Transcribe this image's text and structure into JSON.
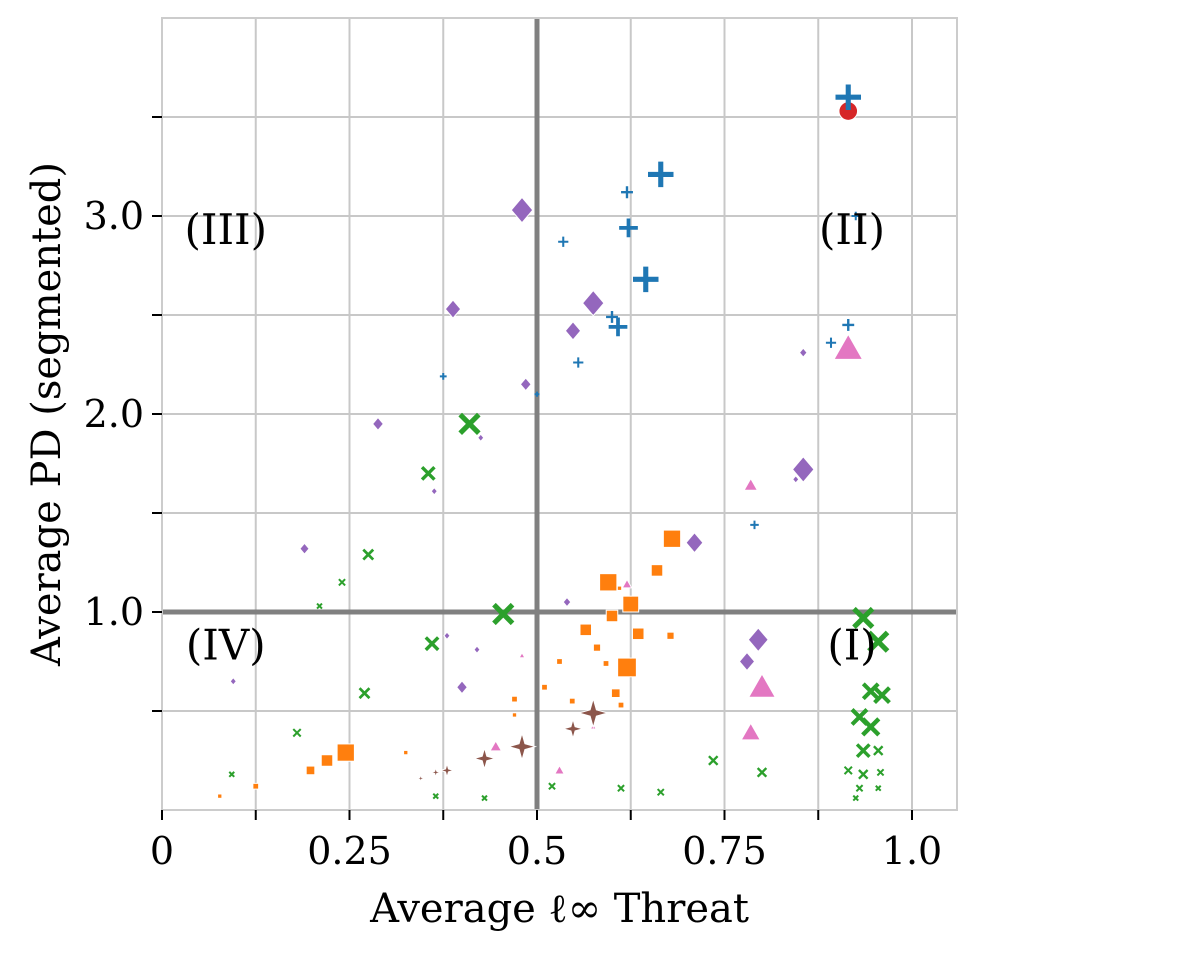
{
  "chart_data": {
    "type": "scatter",
    "title": "",
    "xlabel": "Average ℓ∞ Threat",
    "ylabel": "Average PD (segmented)",
    "xlim": [
      0,
      1.06
    ],
    "ylim": [
      0,
      4.0
    ],
    "grid": true,
    "x_ticks": [
      0,
      0.125,
      0.25,
      0.375,
      0.5,
      0.625,
      0.75,
      0.875,
      1.0
    ],
    "x_tick_labels": [
      "0",
      "",
      "0.25",
      "",
      "0.5",
      "",
      "0.75",
      "",
      "1.0"
    ],
    "y_ticks": [
      0.5,
      1.0,
      1.5,
      2.0,
      2.5,
      3.0,
      3.5
    ],
    "y_tick_labels": [
      "",
      "1.0",
      "",
      "2.0",
      "",
      "3.0",
      ""
    ],
    "reference_lines": {
      "x": 0.5,
      "y": 1.0
    },
    "quadrant_labels": [
      {
        "text": "(I)",
        "x": 0.92,
        "y": 0.83
      },
      {
        "text": "(II)",
        "x": 0.92,
        "y": 2.93
      },
      {
        "text": "(III)",
        "x": 0.085,
        "y": 2.93
      },
      {
        "text": "(IV)",
        "x": 0.085,
        "y": 0.83
      }
    ],
    "series": [
      {
        "color": "#d62728",
        "marker": "circle",
        "points": [
          {
            "x": 0.915,
            "y": 3.53,
            "s": 30
          }
        ]
      },
      {
        "color": "#1f77b4",
        "marker": "plus",
        "points": [
          {
            "x": 0.915,
            "y": 3.6,
            "s": 30
          },
          {
            "x": 0.665,
            "y": 3.21,
            "s": 30
          },
          {
            "x": 0.645,
            "y": 2.68,
            "s": 30
          },
          {
            "x": 0.622,
            "y": 2.94,
            "s": 22
          },
          {
            "x": 0.608,
            "y": 2.44,
            "s": 22
          },
          {
            "x": 0.62,
            "y": 3.12,
            "s": 14
          },
          {
            "x": 0.6,
            "y": 2.49,
            "s": 14
          },
          {
            "x": 0.535,
            "y": 2.87,
            "s": 12
          },
          {
            "x": 0.555,
            "y": 2.26,
            "s": 12
          },
          {
            "x": 0.915,
            "y": 2.45,
            "s": 14
          },
          {
            "x": 0.892,
            "y": 2.36,
            "s": 12
          },
          {
            "x": 0.79,
            "y": 1.44,
            "s": 10
          },
          {
            "x": 0.375,
            "y": 2.19,
            "s": 8
          },
          {
            "x": 0.925,
            "y": 3.0,
            "s": 10
          },
          {
            "x": 0.5,
            "y": 2.1,
            "s": 6
          }
        ]
      },
      {
        "color": "#9467bd",
        "marker": "diamond",
        "points": [
          {
            "x": 0.48,
            "y": 3.03,
            "s": 28
          },
          {
            "x": 0.575,
            "y": 2.56,
            "s": 28
          },
          {
            "x": 0.548,
            "y": 2.42,
            "s": 20
          },
          {
            "x": 0.388,
            "y": 2.53,
            "s": 20
          },
          {
            "x": 0.485,
            "y": 2.15,
            "s": 14
          },
          {
            "x": 0.288,
            "y": 1.95,
            "s": 14
          },
          {
            "x": 0.855,
            "y": 1.72,
            "s": 28
          },
          {
            "x": 0.71,
            "y": 1.35,
            "s": 22
          },
          {
            "x": 0.795,
            "y": 0.86,
            "s": 26
          },
          {
            "x": 0.78,
            "y": 0.75,
            "s": 20
          },
          {
            "x": 0.19,
            "y": 1.32,
            "s": 12
          },
          {
            "x": 0.4,
            "y": 0.62,
            "s": 14
          },
          {
            "x": 0.855,
            "y": 2.31,
            "s": 10
          },
          {
            "x": 0.54,
            "y": 1.05,
            "s": 10
          },
          {
            "x": 0.363,
            "y": 1.61,
            "s": 8
          },
          {
            "x": 0.095,
            "y": 0.65,
            "s": 8
          },
          {
            "x": 0.42,
            "y": 0.81,
            "s": 8
          },
          {
            "x": 0.425,
            "y": 1.88,
            "s": 8
          },
          {
            "x": 0.845,
            "y": 1.67,
            "s": 8
          },
          {
            "x": 0.38,
            "y": 0.88,
            "s": 8
          }
        ]
      },
      {
        "color": "#2ca02c",
        "marker": "x",
        "points": [
          {
            "x": 0.41,
            "y": 1.95,
            "s": 30
          },
          {
            "x": 0.455,
            "y": 0.99,
            "s": 30
          },
          {
            "x": 0.355,
            "y": 1.7,
            "s": 20
          },
          {
            "x": 0.36,
            "y": 0.84,
            "s": 20
          },
          {
            "x": 0.275,
            "y": 1.29,
            "s": 16
          },
          {
            "x": 0.27,
            "y": 0.59,
            "s": 16
          },
          {
            "x": 0.24,
            "y": 1.15,
            "s": 10
          },
          {
            "x": 0.21,
            "y": 1.03,
            "s": 8
          },
          {
            "x": 0.18,
            "y": 0.39,
            "s": 12
          },
          {
            "x": 0.093,
            "y": 0.18,
            "s": 8
          },
          {
            "x": 0.365,
            "y": 0.07,
            "s": 8
          },
          {
            "x": 0.43,
            "y": 0.06,
            "s": 8
          },
          {
            "x": 0.52,
            "y": 0.12,
            "s": 10
          },
          {
            "x": 0.612,
            "y": 0.11,
            "s": 10
          },
          {
            "x": 0.665,
            "y": 0.09,
            "s": 10
          },
          {
            "x": 0.735,
            "y": 0.25,
            "s": 14
          },
          {
            "x": 0.8,
            "y": 0.19,
            "s": 14
          },
          {
            "x": 0.935,
            "y": 0.97,
            "s": 30
          },
          {
            "x": 0.955,
            "y": 0.85,
            "s": 30
          },
          {
            "x": 0.945,
            "y": 0.6,
            "s": 24
          },
          {
            "x": 0.96,
            "y": 0.58,
            "s": 24
          },
          {
            "x": 0.93,
            "y": 0.47,
            "s": 24
          },
          {
            "x": 0.945,
            "y": 0.42,
            "s": 26
          },
          {
            "x": 0.935,
            "y": 0.3,
            "s": 20
          },
          {
            "x": 0.955,
            "y": 0.3,
            "s": 14
          },
          {
            "x": 0.915,
            "y": 0.2,
            "s": 12
          },
          {
            "x": 0.935,
            "y": 0.18,
            "s": 14
          },
          {
            "x": 0.958,
            "y": 0.19,
            "s": 10
          },
          {
            "x": 0.93,
            "y": 0.11,
            "s": 10
          },
          {
            "x": 0.955,
            "y": 0.11,
            "s": 8
          },
          {
            "x": 0.925,
            "y": 0.06,
            "s": 8
          }
        ]
      },
      {
        "color": "#ff7f0e",
        "marker": "square",
        "points": [
          {
            "x": 0.68,
            "y": 1.37,
            "s": 24
          },
          {
            "x": 0.595,
            "y": 1.15,
            "s": 24
          },
          {
            "x": 0.625,
            "y": 1.04,
            "s": 22
          },
          {
            "x": 0.62,
            "y": 0.72,
            "s": 26
          },
          {
            "x": 0.66,
            "y": 1.21,
            "s": 16
          },
          {
            "x": 0.6,
            "y": 0.98,
            "s": 16
          },
          {
            "x": 0.635,
            "y": 0.89,
            "s": 16
          },
          {
            "x": 0.565,
            "y": 0.91,
            "s": 16
          },
          {
            "x": 0.245,
            "y": 0.29,
            "s": 24
          },
          {
            "x": 0.22,
            "y": 0.25,
            "s": 16
          },
          {
            "x": 0.198,
            "y": 0.2,
            "s": 12
          },
          {
            "x": 0.678,
            "y": 0.88,
            "s": 10
          },
          {
            "x": 0.58,
            "y": 0.82,
            "s": 10
          },
          {
            "x": 0.605,
            "y": 0.59,
            "s": 12
          },
          {
            "x": 0.592,
            "y": 0.74,
            "s": 8
          },
          {
            "x": 0.53,
            "y": 0.75,
            "s": 8
          },
          {
            "x": 0.51,
            "y": 0.62,
            "s": 8
          },
          {
            "x": 0.547,
            "y": 0.55,
            "s": 8
          },
          {
            "x": 0.47,
            "y": 0.56,
            "s": 8
          },
          {
            "x": 0.47,
            "y": 0.48,
            "s": 6
          },
          {
            "x": 0.612,
            "y": 0.53,
            "s": 8
          },
          {
            "x": 0.325,
            "y": 0.29,
            "s": 6
          },
          {
            "x": 0.125,
            "y": 0.12,
            "s": 8
          },
          {
            "x": 0.077,
            "y": 0.07,
            "s": 6
          },
          {
            "x": 0.61,
            "y": 1.12,
            "s": 6
          }
        ]
      },
      {
        "color": "#e377c2",
        "marker": "triangle",
        "points": [
          {
            "x": 0.915,
            "y": 2.33,
            "s": 30
          },
          {
            "x": 0.8,
            "y": 0.62,
            "s": 28
          },
          {
            "x": 0.785,
            "y": 1.64,
            "s": 14
          },
          {
            "x": 0.785,
            "y": 0.39,
            "s": 20
          },
          {
            "x": 0.445,
            "y": 0.32,
            "s": 12
          },
          {
            "x": 0.53,
            "y": 0.2,
            "s": 10
          },
          {
            "x": 0.62,
            "y": 1.14,
            "s": 10
          },
          {
            "x": 0.48,
            "y": 0.78,
            "s": 6
          },
          {
            "x": 0.575,
            "y": 0.42,
            "s": 6
          }
        ]
      },
      {
        "color": "#8c564b",
        "marker": "star",
        "points": [
          {
            "x": 0.575,
            "y": 0.49,
            "s": 30
          },
          {
            "x": 0.48,
            "y": 0.32,
            "s": 28
          },
          {
            "x": 0.43,
            "y": 0.26,
            "s": 22
          },
          {
            "x": 0.548,
            "y": 0.41,
            "s": 20
          },
          {
            "x": 0.38,
            "y": 0.2,
            "s": 14
          },
          {
            "x": 0.365,
            "y": 0.19,
            "s": 10
          },
          {
            "x": 0.345,
            "y": 0.16,
            "s": 8
          }
        ]
      }
    ]
  }
}
